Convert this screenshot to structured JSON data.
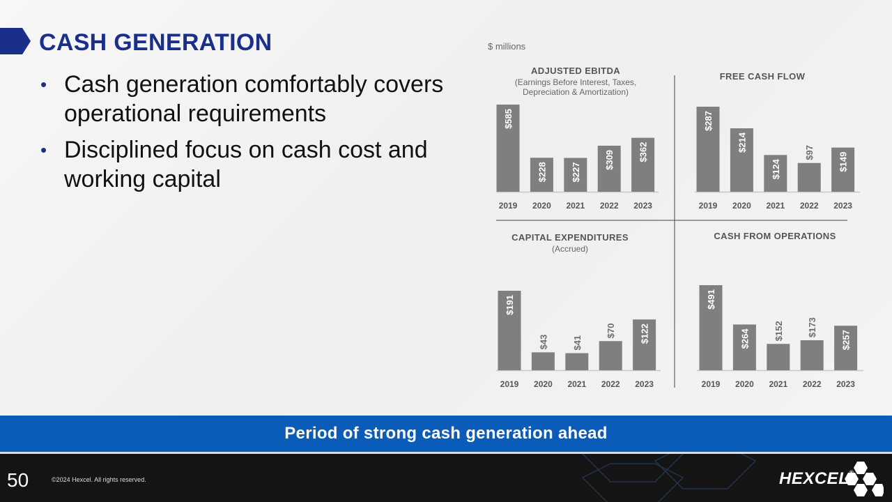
{
  "page": {
    "title": "CASH GENERATION",
    "bullets": [
      "Cash generation comfortably covers operational requirements",
      "Disciplined focus on cash cost and working capital"
    ],
    "units": "$ millions",
    "banner": "Period of strong cash generation ahead",
    "page_number": "50",
    "copyright": "©2024 Hexcel. All rights reserved.",
    "logo": "HEXCEL",
    "logo_mark": "®"
  },
  "colors": {
    "title": "#1a2f8a",
    "bar": "#7f7f7f",
    "banner": "#0a5cb8",
    "footer": "#141414"
  },
  "icons": [
    "title-arrow-icon",
    "hexcel-logo-icon"
  ],
  "chart_data": [
    {
      "type": "bar",
      "title": "ADJUSTED EBITDA",
      "subtitle": "(Earnings Before Interest, Taxes,|Depreciation & Amortization)",
      "categories": [
        "2019",
        "2020",
        "2021",
        "2022",
        "2023"
      ],
      "values": [
        585,
        228,
        227,
        309,
        362
      ],
      "value_labels": [
        "$585",
        "$228",
        "$227",
        "$309",
        "$362"
      ]
    },
    {
      "type": "bar",
      "title": "FREE CASH FLOW",
      "subtitle": "",
      "categories": [
        "2019",
        "2020",
        "2021",
        "2022",
        "2023"
      ],
      "values": [
        287,
        214,
        124,
        97,
        149
      ],
      "value_labels": [
        "$287",
        "$214",
        "$124",
        "$97",
        "$149"
      ]
    },
    {
      "type": "bar",
      "title": "CAPITAL EXPENDITURES",
      "subtitle": "(Accrued)",
      "categories": [
        "2019",
        "2020",
        "2021",
        "2022",
        "2023"
      ],
      "values": [
        191,
        43,
        41,
        70,
        122
      ],
      "value_labels": [
        "$191",
        "$43",
        "$41",
        "$70",
        "$122"
      ]
    },
    {
      "type": "bar",
      "title": "CASH FROM OPERATIONS",
      "subtitle": "",
      "categories": [
        "2019",
        "2020",
        "2021",
        "2022",
        "2023"
      ],
      "values": [
        491,
        264,
        152,
        173,
        257
      ],
      "value_labels": [
        "$491",
        "$264",
        "$152",
        "$173",
        "$257"
      ]
    }
  ]
}
